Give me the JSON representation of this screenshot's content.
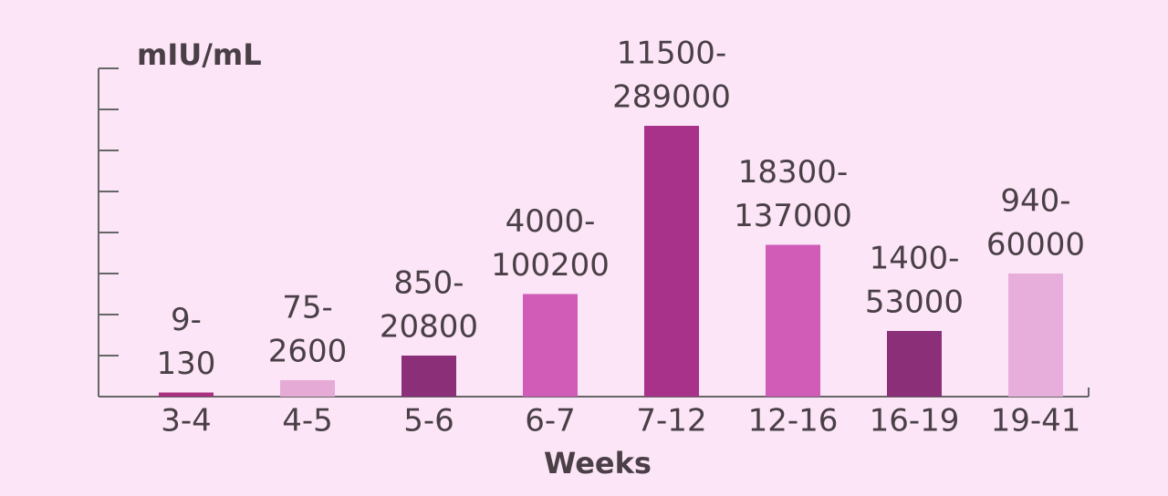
{
  "chart_data": {
    "type": "bar",
    "y_label": "mIU/mL",
    "x_label": "Weeks",
    "categories": [
      "3-4",
      "4-5",
      "5-6",
      "6-7",
      "7-12",
      "12-16",
      "16-19",
      "19-41"
    ],
    "values": [
      0.1,
      0.4,
      1.0,
      2.5,
      6.6,
      3.7,
      1.6,
      3.0
    ],
    "labels": [
      [
        "9-",
        "130"
      ],
      [
        "75-",
        "2600"
      ],
      [
        "850-",
        "20800"
      ],
      [
        "4000-",
        "100200"
      ],
      [
        "11500-",
        "289000"
      ],
      [
        "18300-",
        "137000"
      ],
      [
        "1400-",
        "53000"
      ],
      [
        "940-",
        "60000"
      ]
    ],
    "colors": [
      "#a8307f",
      "#e6aad6",
      "#8b2f78",
      "#d05cb8",
      "#a8318a",
      "#d05cb8",
      "#8b2f78",
      "#e8aedb"
    ],
    "ylim": [
      0,
      8
    ],
    "yticks": [
      1,
      2,
      3,
      4,
      5,
      6,
      7,
      8
    ]
  }
}
